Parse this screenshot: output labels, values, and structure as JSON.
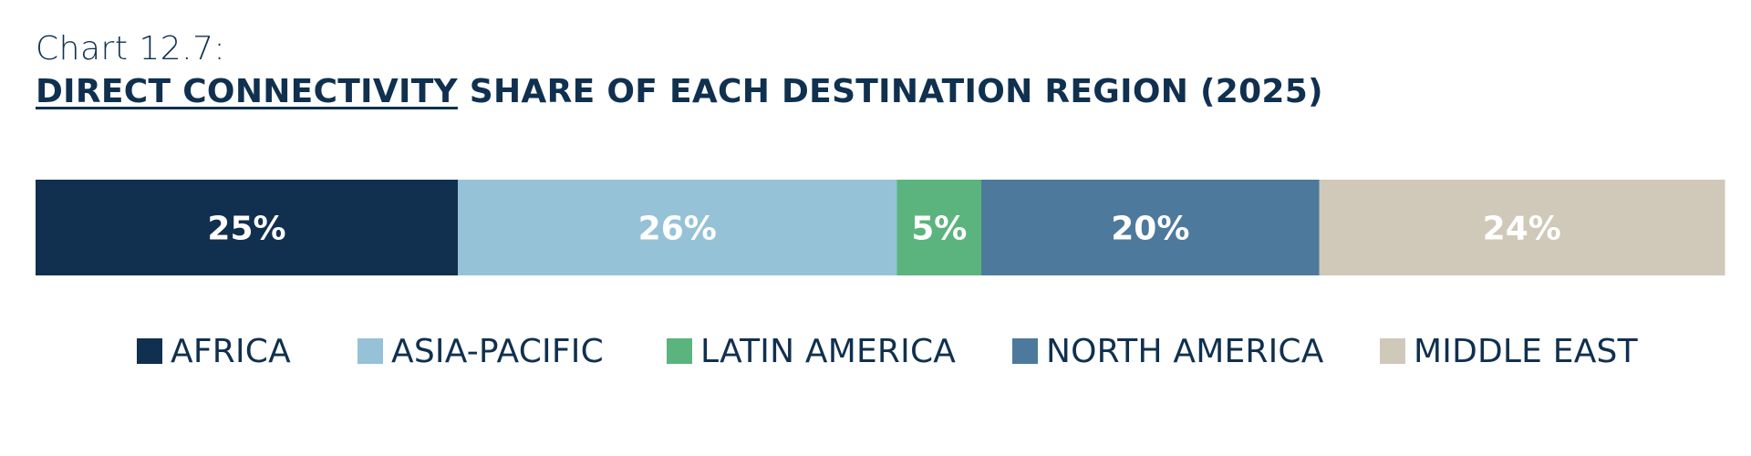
{
  "header": {
    "label": "Chart 12.7:",
    "title_emphasis": "DIRECT CONNECTIVITY",
    "title_rest": " SHARE OF EACH DESTINATION REGION (2025)"
  },
  "colors": {
    "africa": "#11304f",
    "asia_pacific": "#96c2d8",
    "latin_america": "#5bb47d",
    "north_america": "#4d7a9c",
    "middle_east": "#d0c8b9",
    "title_text": "#10304f",
    "bar_label_text": "#ffffff"
  },
  "chart_data": {
    "type": "bar",
    "orientation": "horizontal-stacked-100",
    "title": "DIRECT CONNECTIVITY SHARE OF EACH DESTINATION REGION (2025)",
    "legend_placement": "bottom",
    "grid": false,
    "series": [
      {
        "name": "AFRICA",
        "value": 25,
        "label": "25%",
        "color": "#11304f"
      },
      {
        "name": "ASIA-PACIFIC",
        "value": 26,
        "label": "26%",
        "color": "#96c2d8"
      },
      {
        "name": "LATIN AMERICA",
        "value": 5,
        "label": "5%",
        "color": "#5bb47d"
      },
      {
        "name": "NORTH AMERICA",
        "value": 20,
        "label": "20%",
        "color": "#4d7a9c"
      },
      {
        "name": "MIDDLE EAST",
        "value": 24,
        "label": "24%",
        "color": "#d0c8b9"
      }
    ]
  }
}
